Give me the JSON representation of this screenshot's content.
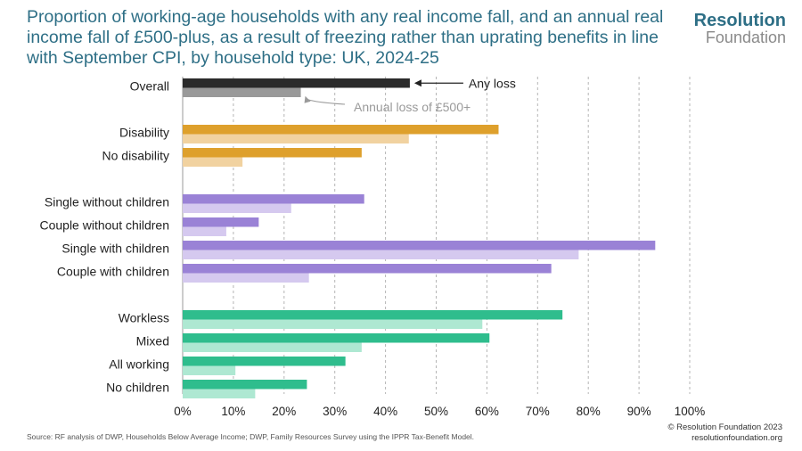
{
  "header": {
    "title": "Proportion of working-age households with any real income fall, and an annual real income fall of £500-plus, as a result of freezing rather than uprating benefits in line with September CPI, by household type: UK, 2024-25"
  },
  "logo": {
    "line1": "Resolution",
    "line2": "Foundation"
  },
  "footer": {
    "source": "Source: RF analysis of DWP, Households Below Average Income; DWP, Family Resources Survey using the IPPR Tax-Benefit Model.",
    "copyright": "© Resolution Foundation 2023",
    "website": "resolutionfoundation.org"
  },
  "chart_data": {
    "type": "bar",
    "orientation": "horizontal",
    "xlim": [
      0,
      100
    ],
    "x_ticks": [
      "0%",
      "10%",
      "20%",
      "30%",
      "40%",
      "50%",
      "60%",
      "70%",
      "80%",
      "90%",
      "100%"
    ],
    "grid": "vertical dashed",
    "series_names": [
      "Any loss",
      "Annual loss of £500+"
    ],
    "groups": [
      {
        "name": "overall",
        "colors": [
          "#2b2b2b",
          "#999999"
        ],
        "categories": [
          {
            "label": "Overall",
            "values": [
              44.8,
              23.3
            ]
          }
        ]
      },
      {
        "name": "disability",
        "colors": [
          "#dea02c",
          "#f1d2a0"
        ],
        "categories": [
          {
            "label": "Disability",
            "values": [
              62.3,
              44.6
            ]
          },
          {
            "label": "No disability",
            "values": [
              35.3,
              11.8
            ]
          }
        ]
      },
      {
        "name": "family-type",
        "colors": [
          "#9a82d6",
          "#d5c9ef"
        ],
        "categories": [
          {
            "label": "Single without children",
            "values": [
              35.8,
              21.4
            ]
          },
          {
            "label": "Couple without children",
            "values": [
              15.0,
              8.6
            ]
          },
          {
            "label": "Single with children",
            "values": [
              93.2,
              78.1
            ]
          },
          {
            "label": "Couple with children",
            "values": [
              72.7,
              24.9
            ]
          }
        ]
      },
      {
        "name": "work-status",
        "colors": [
          "#2fbd8d",
          "#aee8d2"
        ],
        "categories": [
          {
            "label": "Workless",
            "values": [
              74.9,
              59.1
            ]
          },
          {
            "label": "Mixed",
            "values": [
              60.5,
              35.3
            ]
          },
          {
            "label": "All working",
            "values": [
              32.1,
              10.4
            ]
          },
          {
            "label": "No children",
            "values": [
              24.5,
              14.3
            ]
          }
        ]
      }
    ],
    "annotations": [
      {
        "text": "Any loss",
        "points_to": "Overall: Any loss"
      },
      {
        "text": "Annual loss of £500+",
        "points_to": "Overall: Annual loss of £500+"
      }
    ]
  }
}
